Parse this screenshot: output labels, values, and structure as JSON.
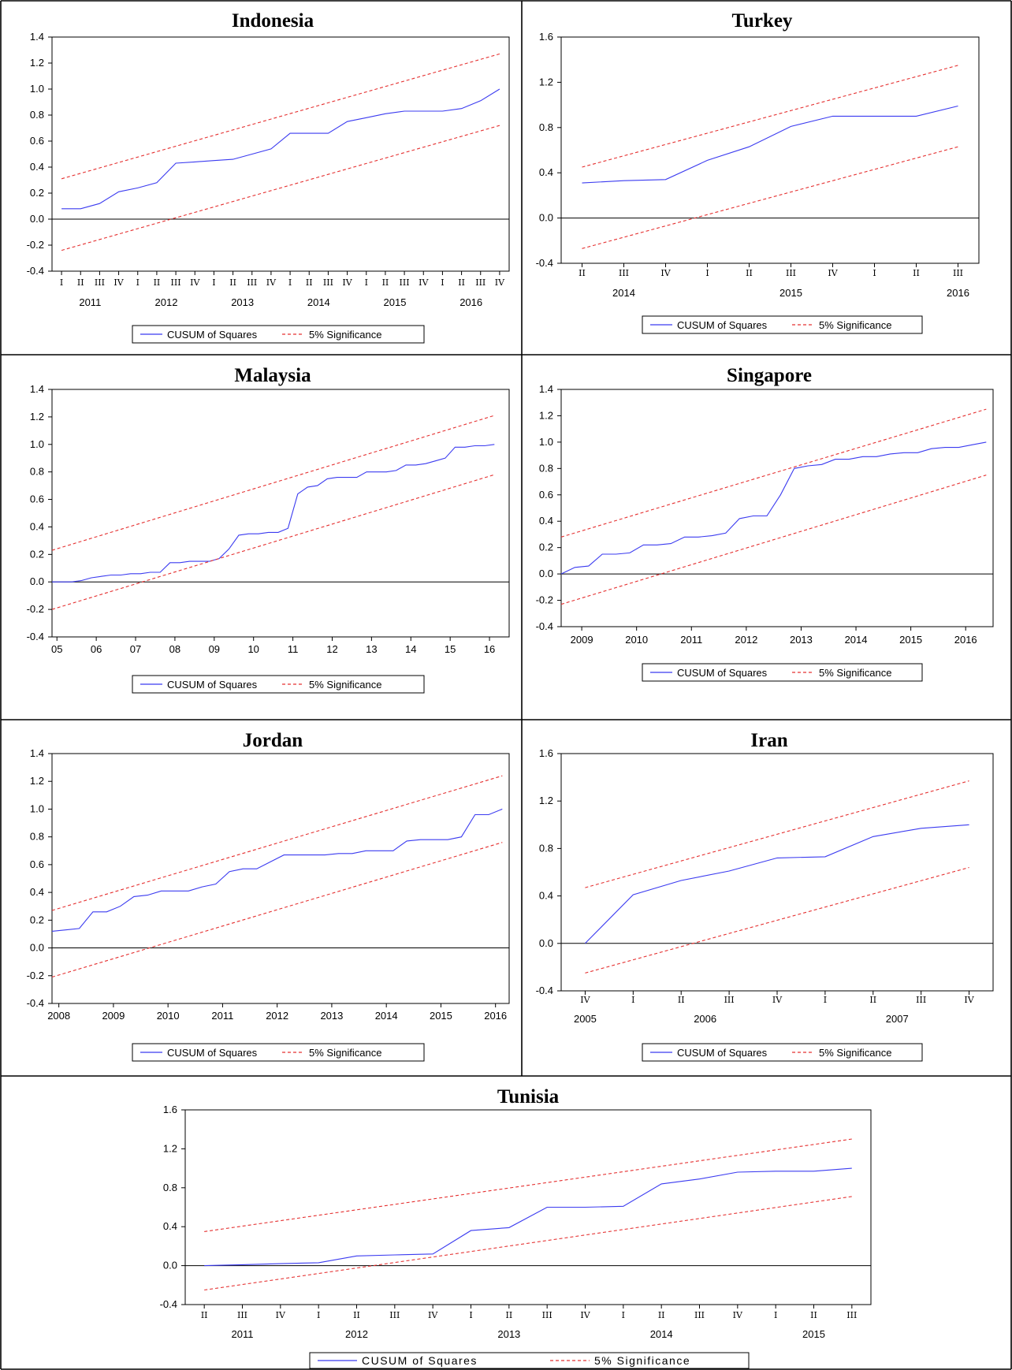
{
  "colors": {
    "cusum": "#3b3bf0",
    "significance": "#e53030",
    "axis": "#000000"
  },
  "legend": {
    "cusum_label": "CUSUM of Squares",
    "significance_label": "5% Significance"
  },
  "chart_data": [
    {
      "type": "line",
      "title": "Indonesia",
      "xlabel": "",
      "ylabel": "",
      "ylim": [
        -0.4,
        1.4
      ],
      "yticks": [
        "1.4",
        "1.2",
        "1.0",
        "0.8",
        "0.6",
        "0.4",
        "0.2",
        "0.0",
        "-0.2",
        "-0.4"
      ],
      "quarter_ticks": [
        "I",
        "II",
        "III",
        "IV",
        "I",
        "II",
        "III",
        "IV",
        "I",
        "II",
        "III",
        "IV",
        "I",
        "II",
        "III",
        "IV",
        "I",
        "II",
        "III",
        "IV",
        "I",
        "II",
        "III",
        "IV"
      ],
      "year_labels": [
        "2011",
        "2012",
        "2013",
        "2014",
        "2015",
        "2016"
      ],
      "year_positions": [
        1.5,
        5.5,
        9.5,
        13.5,
        17.5,
        21.5
      ],
      "xlim": [
        -0.5,
        23.5
      ],
      "series": [
        {
          "name": "CUSUM of Squares",
          "x": [
            0,
            1,
            2,
            3,
            4,
            5,
            6,
            7,
            8,
            9,
            10,
            11,
            12,
            13,
            14,
            15,
            16,
            17,
            18,
            19,
            20,
            21,
            22,
            23
          ],
          "values": [
            0.08,
            0.08,
            0.12,
            0.21,
            0.24,
            0.28,
            0.43,
            0.44,
            0.45,
            0.46,
            0.5,
            0.54,
            0.66,
            0.66,
            0.66,
            0.75,
            0.78,
            0.81,
            0.83,
            0.83,
            0.83,
            0.85,
            0.91,
            1.0
          ]
        },
        {
          "name": "5% Significance",
          "x": [
            0,
            23
          ],
          "values": [
            0.31,
            1.27
          ]
        },
        {
          "name": "5% Significance",
          "x": [
            0,
            23
          ],
          "values": [
            -0.24,
            0.72
          ]
        }
      ]
    },
    {
      "type": "line",
      "title": "Turkey",
      "xlabel": "",
      "ylabel": "",
      "ylim": [
        -0.4,
        1.6
      ],
      "yticks": [
        "1.6",
        "1.2",
        "0.8",
        "0.4",
        "0.0",
        "-0.4"
      ],
      "quarter_ticks": [
        "II",
        "III",
        "IV",
        "I",
        "II",
        "III",
        "IV",
        "I",
        "II",
        "III"
      ],
      "year_labels": [
        "2014",
        "2015",
        "2016"
      ],
      "year_positions": [
        1,
        5,
        9
      ],
      "xlim": [
        -0.5,
        9.5
      ],
      "series": [
        {
          "name": "CUSUM of Squares",
          "x": [
            0,
            1,
            2,
            3,
            4,
            5,
            6,
            7,
            8,
            9
          ],
          "values": [
            0.31,
            0.33,
            0.34,
            0.51,
            0.63,
            0.81,
            0.9,
            0.9,
            0.9,
            0.99
          ]
        },
        {
          "name": "5% Significance",
          "x": [
            0,
            9
          ],
          "values": [
            0.45,
            1.35
          ]
        },
        {
          "name": "5% Significance",
          "x": [
            0,
            9
          ],
          "values": [
            -0.27,
            0.63
          ]
        }
      ]
    },
    {
      "type": "line",
      "title": "Malaysia",
      "xlabel": "",
      "ylabel": "",
      "ylim": [
        -0.4,
        1.4
      ],
      "yticks": [
        "1.4",
        "1.2",
        "1.0",
        "0.8",
        "0.6",
        "0.4",
        "0.2",
        "0.0",
        "-0.2",
        "-0.4"
      ],
      "quarter_ticks": [],
      "year_labels": [
        "05",
        "06",
        "07",
        "08",
        "09",
        "10",
        "11",
        "12",
        "13",
        "14",
        "15",
        "16"
      ],
      "year_positions": [
        0.5,
        4.5,
        8.5,
        12.5,
        16.5,
        20.5,
        24.5,
        28.5,
        32.5,
        36.5,
        40.5,
        44.5
      ],
      "xlim": [
        0,
        46.5
      ],
      "series": [
        {
          "name": "CUSUM of Squares",
          "x": [
            0,
            1,
            2,
            3,
            4,
            5,
            6,
            7,
            8,
            9,
            10,
            11,
            12,
            13,
            14,
            15,
            16,
            17,
            18,
            19,
            20,
            21,
            22,
            23,
            24,
            25,
            26,
            27,
            28,
            29,
            30,
            31,
            32,
            33,
            34,
            35,
            36,
            37,
            38,
            39,
            40,
            41,
            42,
            43,
            44,
            45
          ],
          "values": [
            0.0,
            0.0,
            0.0,
            0.01,
            0.03,
            0.04,
            0.05,
            0.05,
            0.06,
            0.06,
            0.07,
            0.07,
            0.14,
            0.14,
            0.15,
            0.15,
            0.15,
            0.17,
            0.24,
            0.34,
            0.35,
            0.35,
            0.36,
            0.36,
            0.39,
            0.64,
            0.69,
            0.7,
            0.75,
            0.76,
            0.76,
            0.76,
            0.8,
            0.8,
            0.8,
            0.81,
            0.85,
            0.85,
            0.86,
            0.88,
            0.9,
            0.98,
            0.98,
            0.99,
            0.99,
            1.0
          ]
        },
        {
          "name": "5% Significance",
          "x": [
            0,
            45
          ],
          "values": [
            0.23,
            1.21
          ]
        },
        {
          "name": "5% Significance",
          "x": [
            0,
            45
          ],
          "values": [
            -0.2,
            0.78
          ]
        }
      ]
    },
    {
      "type": "line",
      "title": "Singapore",
      "xlabel": "",
      "ylabel": "",
      "ylim": [
        -0.4,
        1.4
      ],
      "yticks": [
        "1.4",
        "1.2",
        "1.0",
        "0.8",
        "0.6",
        "0.4",
        "0.2",
        "0.0",
        "-0.2",
        "-0.4"
      ],
      "quarter_ticks": [],
      "year_labels": [
        "2009",
        "2010",
        "2011",
        "2012",
        "2013",
        "2014",
        "2015",
        "2016"
      ],
      "year_positions": [
        1.5,
        5.5,
        9.5,
        13.5,
        17.5,
        21.5,
        25.5,
        29.5
      ],
      "xlim": [
        0,
        31.5
      ],
      "series": [
        {
          "name": "CUSUM of Squares",
          "x": [
            0,
            1,
            2,
            3,
            4,
            5,
            6,
            7,
            8,
            9,
            10,
            11,
            12,
            13,
            14,
            15,
            16,
            17,
            18,
            19,
            20,
            21,
            22,
            23,
            24,
            25,
            26,
            27,
            28,
            29,
            30,
            31
          ],
          "values": [
            0.0,
            0.05,
            0.06,
            0.15,
            0.15,
            0.16,
            0.22,
            0.22,
            0.23,
            0.28,
            0.28,
            0.29,
            0.31,
            0.42,
            0.44,
            0.44,
            0.6,
            0.8,
            0.82,
            0.83,
            0.87,
            0.87,
            0.89,
            0.89,
            0.91,
            0.92,
            0.92,
            0.95,
            0.96,
            0.96,
            0.98,
            1.0
          ]
        },
        {
          "name": "5% Significance",
          "x": [
            0,
            31
          ],
          "values": [
            0.28,
            1.25
          ]
        },
        {
          "name": "5% Significance",
          "x": [
            0,
            31
          ],
          "values": [
            -0.23,
            0.75
          ]
        }
      ]
    },
    {
      "type": "line",
      "title": "Jordan",
      "xlabel": "",
      "ylabel": "",
      "ylim": [
        -0.4,
        1.4
      ],
      "yticks": [
        "1.4",
        "1.2",
        "1.0",
        "0.8",
        "0.6",
        "0.4",
        "0.2",
        "0.0",
        "-0.2",
        "-0.4"
      ],
      "quarter_ticks": [],
      "year_labels": [
        "2008",
        "2009",
        "2010",
        "2011",
        "2012",
        "2013",
        "2014",
        "2015",
        "2016"
      ],
      "year_positions": [
        0.5,
        4.5,
        8.5,
        12.5,
        16.5,
        20.5,
        24.5,
        28.5,
        32.5
      ],
      "xlim": [
        0,
        33.5
      ],
      "series": [
        {
          "name": "CUSUM of Squares",
          "x": [
            0,
            1,
            2,
            3,
            4,
            5,
            6,
            7,
            8,
            9,
            10,
            11,
            12,
            13,
            14,
            15,
            16,
            17,
            18,
            19,
            20,
            21,
            22,
            23,
            24,
            25,
            26,
            27,
            28,
            29,
            30,
            31,
            32,
            33
          ],
          "values": [
            0.12,
            0.13,
            0.14,
            0.26,
            0.26,
            0.3,
            0.37,
            0.38,
            0.41,
            0.41,
            0.41,
            0.44,
            0.46,
            0.55,
            0.57,
            0.57,
            0.62,
            0.67,
            0.67,
            0.67,
            0.67,
            0.68,
            0.68,
            0.7,
            0.7,
            0.7,
            0.77,
            0.78,
            0.78,
            0.78,
            0.8,
            0.96,
            0.96,
            1.0
          ]
        },
        {
          "name": "5% Significance",
          "x": [
            0,
            33
          ],
          "values": [
            0.27,
            1.24
          ]
        },
        {
          "name": "5% Significance",
          "x": [
            0,
            33
          ],
          "values": [
            -0.21,
            0.76
          ]
        }
      ]
    },
    {
      "type": "line",
      "title": "Iran",
      "xlabel": "",
      "ylabel": "",
      "ylim": [
        -0.4,
        1.6
      ],
      "yticks": [
        "1.6",
        "1.2",
        "0.8",
        "0.4",
        "0.0",
        "-0.4"
      ],
      "quarter_ticks": [
        "IV",
        "I",
        "II",
        "III",
        "IV",
        "I",
        "II",
        "III",
        "IV"
      ],
      "year_labels": [
        "2005",
        "2006",
        "2007"
      ],
      "year_positions": [
        0,
        2.5,
        6.5
      ],
      "xlim": [
        -0.5,
        8.5
      ],
      "series": [
        {
          "name": "CUSUM of Squares",
          "x": [
            0,
            1,
            2,
            3,
            4,
            5,
            6,
            7,
            8
          ],
          "values": [
            0.0,
            0.41,
            0.53,
            0.61,
            0.72,
            0.73,
            0.9,
            0.97,
            1.0
          ]
        },
        {
          "name": "5% Significance",
          "x": [
            0,
            8
          ],
          "values": [
            0.47,
            1.37
          ]
        },
        {
          "name": "5% Significance",
          "x": [
            0,
            8
          ],
          "values": [
            -0.25,
            0.64
          ]
        }
      ]
    },
    {
      "type": "line",
      "title": "Tunisia",
      "xlabel": "",
      "ylabel": "",
      "ylim": [
        -0.4,
        1.6
      ],
      "yticks": [
        "1.6",
        "1.2",
        "0.8",
        "0.4",
        "0.0",
        "-0.4"
      ],
      "quarter_ticks": [
        "II",
        "III",
        "IV",
        "I",
        "II",
        "III",
        "IV",
        "I",
        "II",
        "III",
        "IV",
        "I",
        "II",
        "III",
        "IV",
        "I",
        "II",
        "III"
      ],
      "year_labels": [
        "2011",
        "2012",
        "2013",
        "2014",
        "2015"
      ],
      "year_positions": [
        1,
        4,
        8,
        12,
        16
      ],
      "xlim": [
        -0.5,
        17.5
      ],
      "series": [
        {
          "name": "CUSUM of Squares",
          "x": [
            0,
            1,
            2,
            3,
            4,
            5,
            6,
            7,
            8,
            9,
            10,
            11,
            12,
            13,
            14,
            15,
            16,
            17
          ],
          "values": [
            0.0,
            0.01,
            0.02,
            0.03,
            0.1,
            0.11,
            0.12,
            0.36,
            0.39,
            0.6,
            0.6,
            0.61,
            0.84,
            0.89,
            0.96,
            0.97,
            0.97,
            1.0
          ]
        },
        {
          "name": "5% Significance",
          "x": [
            0,
            17
          ],
          "values": [
            0.35,
            1.3
          ]
        },
        {
          "name": "5% Significance",
          "x": [
            0,
            17
          ],
          "values": [
            -0.25,
            0.71
          ]
        }
      ]
    }
  ]
}
